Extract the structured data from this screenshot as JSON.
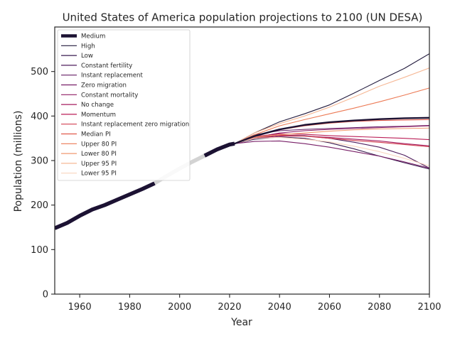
{
  "chart_data": {
    "type": "line",
    "title": "United States of America population projections to 2100 (UN DESA)",
    "xlabel": "Year",
    "ylabel": "Population (millions)",
    "xlim": [
      1950,
      2100
    ],
    "ylim": [
      0,
      600
    ],
    "xticks": [
      1960,
      1980,
      2000,
      2020,
      2040,
      2060,
      2080,
      2100
    ],
    "yticks": [
      0,
      100,
      200,
      300,
      400,
      500
    ],
    "grid": false,
    "legend_position": "upper-left",
    "historical": {
      "name": "Medium",
      "color": "#1c1233",
      "highlight_color": "#d3d3d3",
      "highlight_range": [
        1990,
        2010
      ],
      "x": [
        1950,
        1955,
        1960,
        1965,
        1970,
        1975,
        1980,
        1985,
        1990,
        1995,
        2000,
        2005,
        2010,
        2015,
        2020,
        2022
      ],
      "y": [
        148,
        160,
        176,
        190,
        200,
        212,
        224,
        236,
        249,
        266,
        282,
        297,
        311,
        325,
        336,
        338
      ]
    },
    "series": [
      {
        "name": "Medium",
        "color": "#1c1233",
        "width": 2.4,
        "x": [
          2022,
          2030,
          2040,
          2050,
          2060,
          2070,
          2080,
          2090,
          2100
        ],
        "y": [
          338,
          355,
          370,
          380,
          386,
          390,
          393,
          395,
          396
        ]
      },
      {
        "name": "High",
        "color": "#231b3e",
        "width": 1.1,
        "x": [
          2022,
          2030,
          2040,
          2050,
          2060,
          2070,
          2080,
          2090,
          2100
        ],
        "y": [
          338,
          362,
          387,
          405,
          425,
          452,
          480,
          507,
          540
        ]
      },
      {
        "name": "Low",
        "color": "#3a1c50",
        "width": 1.1,
        "x": [
          2022,
          2030,
          2040,
          2050,
          2060,
          2070,
          2080,
          2090,
          2100
        ],
        "y": [
          338,
          348,
          353,
          350,
          340,
          326,
          310,
          295,
          281
        ]
      },
      {
        "name": "Constant fertility",
        "color": "#4f1d5d",
        "width": 1.1,
        "x": [
          2022,
          2030,
          2040,
          2050,
          2060,
          2070,
          2080,
          2090,
          2100
        ],
        "y": [
          338,
          350,
          357,
          356,
          350,
          341,
          330,
          312,
          283
        ]
      },
      {
        "name": "Instant replacement",
        "color": "#641e66",
        "width": 1.1,
        "x": [
          2022,
          2030,
          2040,
          2050,
          2060,
          2070,
          2080,
          2090,
          2100
        ],
        "y": [
          338,
          358,
          367,
          370,
          372,
          374,
          376,
          377,
          379
        ]
      },
      {
        "name": "Zero migration",
        "color": "#781f67",
        "width": 1.1,
        "x": [
          2022,
          2030,
          2040,
          2050,
          2060,
          2070,
          2080,
          2090,
          2100
        ],
        "y": [
          338,
          343,
          344,
          338,
          330,
          320,
          310,
          297,
          283
        ]
      },
      {
        "name": "Constant mortality",
        "color": "#8f1e66",
        "width": 1.1,
        "x": [
          2022,
          2030,
          2040,
          2050,
          2060,
          2070,
          2080,
          2090,
          2100
        ],
        "y": [
          338,
          352,
          362,
          367,
          370,
          372,
          374,
          376,
          378
        ]
      },
      {
        "name": "No change",
        "color": "#a51d5f",
        "width": 1.1,
        "x": [
          2022,
          2030,
          2040,
          2050,
          2060,
          2070,
          2080,
          2090,
          2100
        ],
        "y": [
          338,
          350,
          355,
          355,
          352,
          348,
          344,
          338,
          333
        ]
      },
      {
        "name": "Momentum",
        "color": "#bb1f57",
        "width": 1.1,
        "x": [
          2022,
          2030,
          2040,
          2050,
          2060,
          2070,
          2080,
          2090,
          2100
        ],
        "y": [
          338,
          354,
          360,
          359,
          356,
          354,
          352,
          350,
          347
        ]
      },
      {
        "name": "Instant replacement zero migration",
        "color": "#d13f50",
        "width": 1.1,
        "x": [
          2022,
          2030,
          2040,
          2050,
          2060,
          2070,
          2080,
          2090,
          2100
        ],
        "y": [
          338,
          352,
          357,
          355,
          350,
          345,
          341,
          336,
          331
        ]
      },
      {
        "name": "Median PI",
        "color": "#e05a4b",
        "width": 1.1,
        "x": [
          2022,
          2030,
          2040,
          2050,
          2060,
          2070,
          2080,
          2090,
          2100
        ],
        "y": [
          338,
          355,
          369,
          378,
          384,
          388,
          390,
          391,
          392
        ]
      },
      {
        "name": "Upper 80 PI",
        "color": "#ec7a55",
        "width": 1.1,
        "x": [
          2022,
          2030,
          2040,
          2050,
          2060,
          2070,
          2080,
          2090,
          2100
        ],
        "y": [
          338,
          358,
          378,
          392,
          405,
          418,
          432,
          447,
          463
        ]
      },
      {
        "name": "Lower 80 PI",
        "color": "#f19970",
        "width": 1.1,
        "x": [
          2022,
          2030,
          2040,
          2050,
          2060,
          2070,
          2080,
          2090,
          2100
        ],
        "y": [
          338,
          353,
          358,
          362,
          366,
          369,
          371,
          372,
          373
        ]
      },
      {
        "name": "Upper 95 PI",
        "color": "#f6b896",
        "width": 1.1,
        "x": [
          2022,
          2030,
          2040,
          2050,
          2060,
          2070,
          2080,
          2090,
          2100
        ],
        "y": [
          338,
          362,
          383,
          400,
          420,
          443,
          467,
          487,
          508
        ]
      },
      {
        "name": "Lower 95 PI",
        "color": "#f9d4bd",
        "width": 1.1,
        "x": [
          2022,
          2030,
          2040,
          2050,
          2060,
          2070,
          2080,
          2090,
          2100
        ],
        "y": [
          338,
          350,
          352,
          348,
          342,
          332,
          320,
          305,
          288
        ]
      }
    ]
  }
}
